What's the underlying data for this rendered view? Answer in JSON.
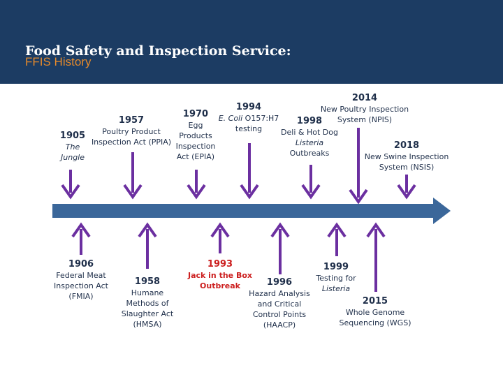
{
  "header": {
    "title": "Food Safety and Inspection Service:",
    "subtitle": "FFIS History"
  },
  "colors": {
    "header_bg": "#1c3c63",
    "subtitle": "#e58a2b",
    "arrow": "#6b2fa0",
    "timeline": "#3b679a",
    "highlight": "#cc1f1f"
  },
  "events": {
    "e1905": {
      "year": "1905",
      "title": "The Jungle"
    },
    "e1906": {
      "year": "1906",
      "line1": "Federal Meat",
      "line2": "Inspection Act",
      "line3": "(FMIA)"
    },
    "e1957": {
      "year": "1957",
      "line1": "Poultry Product",
      "line2": "Inspection Act (PPIA)"
    },
    "e1958": {
      "year": "1958",
      "line1": "Humane",
      "line2": "Methods of",
      "line3": "Slaughter Act",
      "line4": "(HMSA)"
    },
    "e1970": {
      "year": "1970",
      "line1": "Egg",
      "line2": "Products",
      "line3": "Inspection",
      "line4": "Act (EPIA)"
    },
    "e1993": {
      "year": "1993",
      "line1": "Jack in the Box",
      "line2": "Outbreak"
    },
    "e1994": {
      "year": "1994",
      "italic": "E. Coli",
      "rest": " O157:H7",
      "line2": "testing"
    },
    "e1996": {
      "year": "1996",
      "line1": "Hazard Analysis",
      "line2": "and Critical",
      "line3": "Control Points",
      "line4": "(HAACP)"
    },
    "e1998": {
      "year": "1998",
      "line1": "Deli & Hot Dog",
      "line2": "Listeria",
      "line3": "Outbreaks"
    },
    "e1999": {
      "year": "1999",
      "line1": "Testing for",
      "line2": "Listeria"
    },
    "e2014": {
      "year": "2014",
      "line1": "New Poultry Inspection",
      "line2": "System (NPIS)"
    },
    "e2015": {
      "year": "2015",
      "line1": "Whole Genome",
      "line2": "Sequencing (WGS)"
    },
    "e2018": {
      "year": "2018",
      "line1": "New Swine Inspection",
      "line2": "System (NSIS)"
    }
  }
}
